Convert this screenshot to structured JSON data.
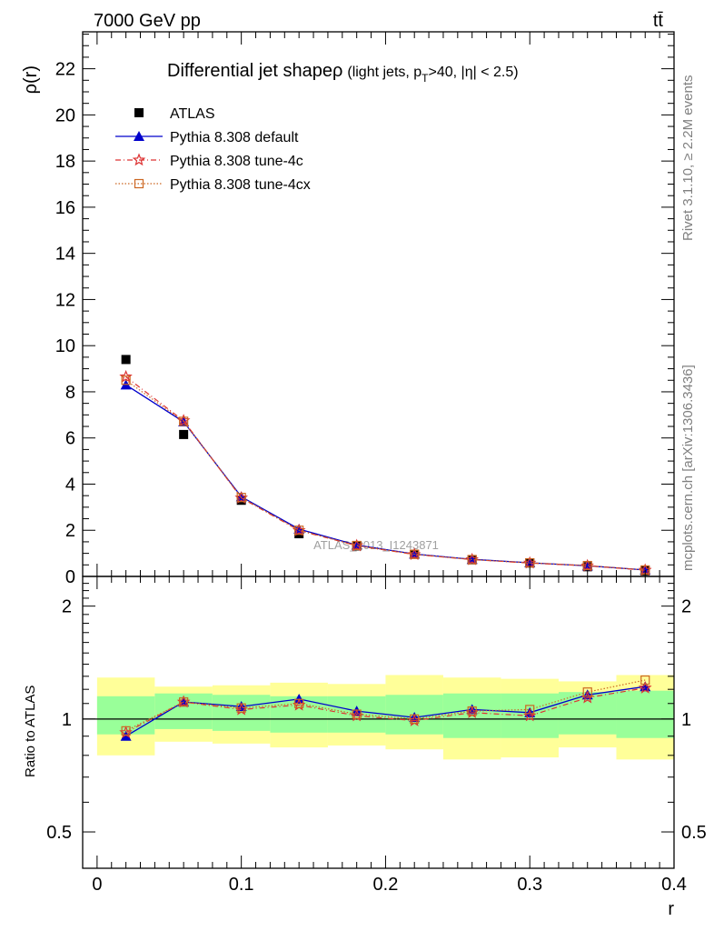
{
  "header": {
    "collision": "7000 GeV pp",
    "process": "tt̄"
  },
  "side_labels": {
    "rivet": "Rivet 3.1.10, ≥ 2.2M events",
    "site": "mcplots.cern.ch [arXiv:1306.3436]"
  },
  "colors": {
    "data": "#000000",
    "default": "#0000cc",
    "tune4c": "#dd3333",
    "tune4cx": "#cc6622",
    "band_inner": "#99ff99",
    "band_outer": "#ffff99"
  },
  "chart_data": [
    {
      "type": "scatter",
      "title": "Differential jet shape",
      "title_rho": "ρ",
      "subtitle_parts": [
        "(light jets, p",
        "T",
        ">40, |η| < 2.5)"
      ],
      "ylabel": "ρ(r)",
      "watermark": "ATLAS_2013_I1243871",
      "ylim": [
        0,
        23.6
      ],
      "y_ticks": [
        0,
        2,
        4,
        6,
        8,
        10,
        12,
        14,
        16,
        18,
        20,
        22
      ],
      "y_tick_labels": [
        "0",
        "2",
        "4",
        "6",
        "8",
        "10",
        "12",
        "14",
        "16",
        "18",
        "20",
        "22"
      ],
      "legend_position": "top-left",
      "x": [
        0.02,
        0.06,
        0.1,
        0.14,
        0.18,
        0.22,
        0.26,
        0.3,
        0.34,
        0.38
      ],
      "series": [
        {
          "name": "ATLAS",
          "marker": "square",
          "values": [
            9.4,
            6.15,
            3.3,
            1.85,
            1.32,
            0.96,
            0.72,
            0.58,
            0.42,
            0.24
          ]
        },
        {
          "name": "Pythia 8.308 default",
          "marker": "triangle",
          "values": [
            8.3,
            6.7,
            3.45,
            2.05,
            1.36,
            0.97,
            0.74,
            0.59,
            0.46,
            0.28
          ]
        },
        {
          "name": "Pythia 8.308 tune-4c",
          "marker": "star",
          "values": [
            8.65,
            6.75,
            3.4,
            1.99,
            1.33,
            0.95,
            0.73,
            0.58,
            0.46,
            0.27
          ]
        },
        {
          "name": "Pythia 8.308 tune-4cx",
          "marker": "open-square",
          "values": [
            8.5,
            6.72,
            3.42,
            2.0,
            1.34,
            0.96,
            0.73,
            0.59,
            0.47,
            0.28
          ]
        }
      ]
    },
    {
      "type": "scatter",
      "ylabel": "Ratio to ATLAS",
      "xlabel": "r",
      "xlim": [
        -0.01,
        0.4
      ],
      "x_ticks": [
        0,
        0.1,
        0.2,
        0.3,
        0.4
      ],
      "x_tick_labels": [
        "0",
        "0.1",
        "0.2",
        "0.3",
        "0.4"
      ],
      "ylim": [
        0.4,
        2.4
      ],
      "y_ticks": [
        0.5,
        1,
        2
      ],
      "y_tick_labels": [
        "0.5",
        "1",
        "2"
      ],
      "reference_line": 1,
      "bins": [
        [
          0.0,
          0.04
        ],
        [
          0.04,
          0.08
        ],
        [
          0.08,
          0.12
        ],
        [
          0.12,
          0.16
        ],
        [
          0.16,
          0.2
        ],
        [
          0.2,
          0.24
        ],
        [
          0.24,
          0.28
        ],
        [
          0.28,
          0.32
        ],
        [
          0.32,
          0.36
        ],
        [
          0.36,
          0.4
        ]
      ],
      "band_inner": [
        [
          0.91,
          1.15
        ],
        [
          0.94,
          1.17
        ],
        [
          0.93,
          1.16
        ],
        [
          0.92,
          1.15
        ],
        [
          0.92,
          1.15
        ],
        [
          0.91,
          1.16
        ],
        [
          0.89,
          1.17
        ],
        [
          0.89,
          1.17
        ],
        [
          0.91,
          1.18
        ],
        [
          0.89,
          1.19
        ]
      ],
      "band_outer": [
        [
          0.8,
          1.29
        ],
        [
          0.87,
          1.22
        ],
        [
          0.86,
          1.23
        ],
        [
          0.84,
          1.25
        ],
        [
          0.85,
          1.24
        ],
        [
          0.83,
          1.31
        ],
        [
          0.78,
          1.29
        ],
        [
          0.79,
          1.28
        ],
        [
          0.84,
          1.26
        ],
        [
          0.78,
          1.31
        ]
      ],
      "x": [
        0.02,
        0.06,
        0.1,
        0.14,
        0.18,
        0.22,
        0.26,
        0.3,
        0.34,
        0.38
      ],
      "series": [
        {
          "name": "Pythia 8.308 default",
          "marker": "triangle",
          "values": [
            0.9,
            1.11,
            1.08,
            1.13,
            1.05,
            1.01,
            1.06,
            1.04,
            1.16,
            1.22
          ]
        },
        {
          "name": "Pythia 8.308 tune-4c",
          "marker": "star",
          "values": [
            0.92,
            1.11,
            1.06,
            1.09,
            1.02,
            0.99,
            1.04,
            1.02,
            1.14,
            1.21
          ]
        },
        {
          "name": "Pythia 8.308 tune-4cx",
          "marker": "open-square",
          "values": [
            0.93,
            1.11,
            1.07,
            1.1,
            1.03,
            1.0,
            1.05,
            1.06,
            1.18,
            1.27
          ]
        }
      ]
    }
  ]
}
